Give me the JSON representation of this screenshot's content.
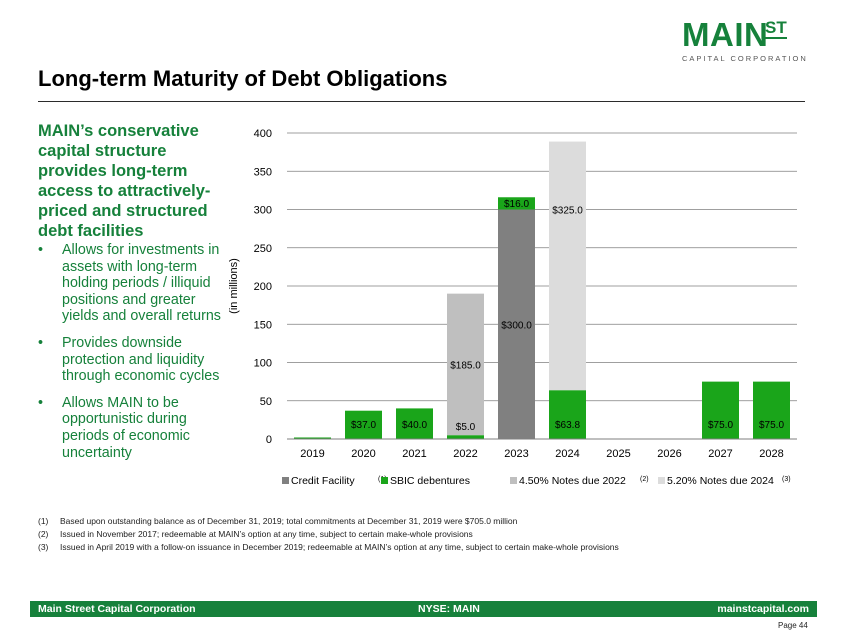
{
  "logo": {
    "main": "MAIN",
    "st": "ST",
    "sub": "CAPITAL CORPORATION"
  },
  "title": "Long-term Maturity of Debt Obligations",
  "sidebar": {
    "lead": "MAIN’s conservative capital structure provides long-term access to attractively-priced and structured debt facilities",
    "bullets": [
      "Allows for investments in assets with long-term holding periods / illiquid positions and greater yields and overall returns",
      "Provides downside protection and liquidity through economic cycles",
      "Allows MAIN to be opportunistic during periods of economic uncertainty"
    ]
  },
  "chart_data": {
    "type": "bar",
    "stacked": true,
    "ylabel": "(in millions)",
    "ylim": [
      0,
      400
    ],
    "yticks": [
      0,
      50,
      100,
      150,
      200,
      250,
      300,
      350,
      400
    ],
    "grid": true,
    "legend_position": "bottom",
    "categories": [
      "2019",
      "2020",
      "2021",
      "2022",
      "2023",
      "2024",
      "2025",
      "2026",
      "2027",
      "2028"
    ],
    "series": [
      {
        "name": "Credit Facility",
        "superscript": "(1)",
        "color": "#808080",
        "values": [
          0,
          0,
          0,
          0,
          300,
          0,
          0,
          0,
          0,
          0
        ],
        "labels": [
          "",
          "",
          "",
          "",
          "$300.0",
          "",
          "",
          "",
          "",
          ""
        ]
      },
      {
        "name": "SBIC debentures",
        "superscript": "",
        "color": "#1aa51a",
        "values": [
          2,
          37,
          40,
          5,
          16,
          63.8,
          0,
          0,
          75,
          75
        ],
        "labels": [
          "",
          "$37.0",
          "$40.0",
          "$5.0",
          "$16.0",
          "$63.8",
          "",
          "",
          "$75.0",
          "$75.0"
        ]
      },
      {
        "name": "4.50% Notes due 2022",
        "superscript": "(2)",
        "color": "#bfbfbf",
        "values": [
          0,
          0,
          0,
          185,
          0,
          0,
          0,
          0,
          0,
          0
        ],
        "labels": [
          "",
          "",
          "",
          "$185.0",
          "",
          "",
          "",
          "",
          "",
          ""
        ]
      },
      {
        "name": "5.20% Notes due 2024",
        "superscript": "(3)",
        "color": "#dcdcdc",
        "values": [
          0,
          0,
          0,
          0,
          0,
          325,
          0,
          0,
          0,
          0
        ],
        "labels": [
          "",
          "",
          "",
          "",
          "",
          "$325.0",
          "",
          "",
          "",
          ""
        ]
      }
    ]
  },
  "footnotes": [
    {
      "num": "(1)",
      "text": "Based upon outstanding balance as of December 31, 2019; total commitments at December 31, 2019 were $705.0 million"
    },
    {
      "num": "(2)",
      "text": "Issued in November 2017; redeemable at MAIN’s option at any time, subject to certain make-whole provisions"
    },
    {
      "num": "(3)",
      "text": "Issued in April 2019 with a follow-on issuance in December 2019; redeemable at MAIN’s option at any time, subject to certain make-whole provisions"
    }
  ],
  "footer": {
    "left": "Main Street Capital Corporation",
    "middle": "NYSE: MAIN",
    "right": "mainstcapital.com",
    "page": "Page 44"
  }
}
